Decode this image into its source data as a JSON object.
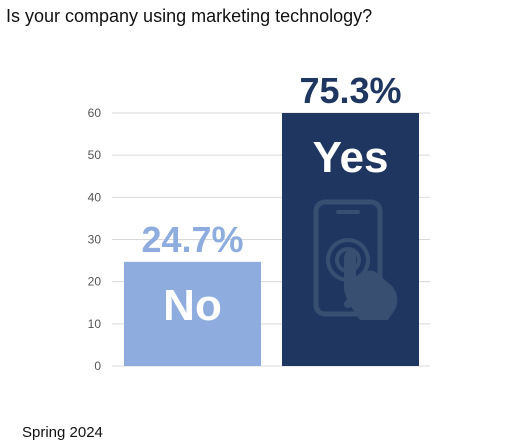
{
  "title": "Is your company using marketing technology?",
  "footer": "Spring 2024",
  "colors": {
    "no_bar": "#8eadde",
    "yes_bar": "#1f3760",
    "no_pct": "#8eadde",
    "yes_pct": "#1f3760",
    "grid": "#d9d9d9",
    "icon": "#3e5474"
  },
  "icon": "phone-tap-icon",
  "chart_data": {
    "type": "bar",
    "categories": [
      "No",
      "Yes"
    ],
    "values": [
      24.7,
      75.3
    ],
    "value_labels": [
      "24.7%",
      "75.3%"
    ],
    "title": "Is your company using marketing technology?",
    "xlabel": "",
    "ylabel": "",
    "ylim": [
      0,
      60
    ],
    "yticks": [
      0,
      10,
      20,
      30,
      40,
      50,
      60
    ],
    "grid": true,
    "legend": "none"
  }
}
